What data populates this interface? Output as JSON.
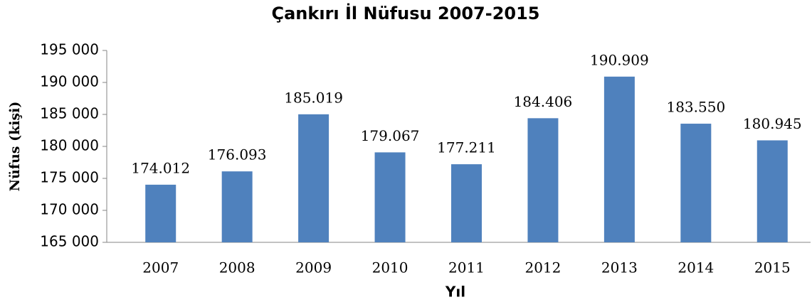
{
  "chart_data": {
    "type": "bar",
    "title": "Çankırı İl Nüfusu 2007-2015",
    "x_label": "Yıl",
    "y_label": "Nüfus (kişi)",
    "categories": [
      "2007",
      "2008",
      "2009",
      "2010",
      "2011",
      "2012",
      "2013",
      "2014",
      "2015"
    ],
    "values": [
      174012,
      176093,
      185019,
      179067,
      177211,
      184406,
      190909,
      183550,
      180945
    ],
    "value_labels": [
      "174.012",
      "176.093",
      "185.019",
      "179.067",
      "177.211",
      "184.406",
      "190.909",
      "183.550",
      "180.945"
    ],
    "color": "#4f81bd",
    "ylim": [
      165000,
      195000
    ],
    "yticks": [
      {
        "value": 165000,
        "label": "165 000"
      },
      {
        "value": 170000,
        "label": "170 000"
      },
      {
        "value": 175000,
        "label": "175 000"
      },
      {
        "value": 180000,
        "label": "180 000"
      },
      {
        "value": 185000,
        "label": "185 000"
      },
      {
        "value": 190000,
        "label": "190 000"
      },
      {
        "value": 195000,
        "label": "195 000"
      }
    ],
    "grid": false
  }
}
